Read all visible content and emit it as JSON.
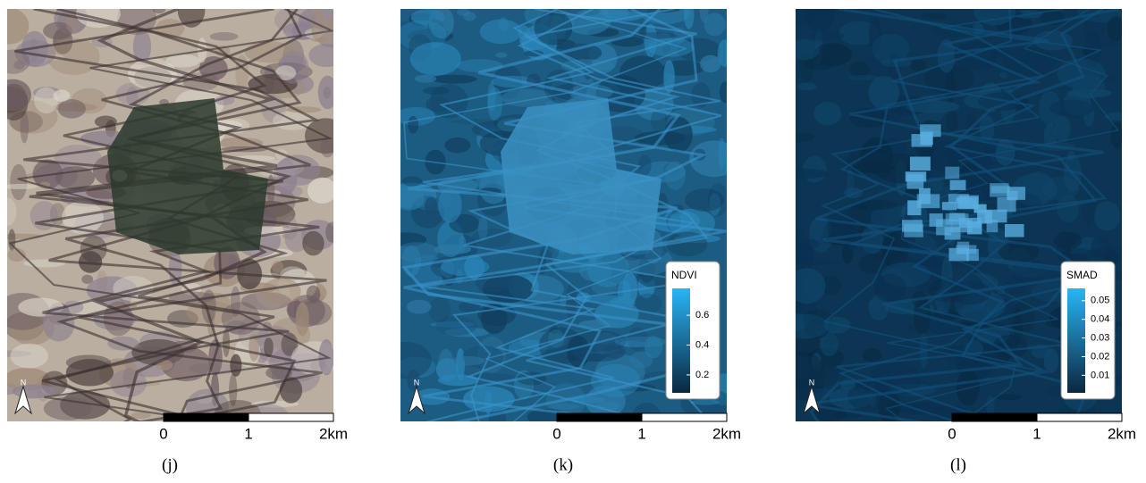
{
  "panels": [
    {
      "label": "(j)"
    },
    {
      "label": "(k)",
      "legend": {
        "title": "NDVI",
        "lim": [
          0.08,
          0.78
        ],
        "ticks": [
          0.2,
          0.4,
          0.6
        ],
        "colors": [
          "#0b2740",
          "#29b5f5"
        ]
      }
    },
    {
      "label": "(l)",
      "legend": {
        "title": "SMAD",
        "lim": [
          0.0006,
          0.0566
        ],
        "ticks": [
          0.01,
          0.02,
          0.03,
          0.04,
          0.05
        ],
        "colors": [
          "#0b2740",
          "#29b5f5"
        ]
      }
    }
  ],
  "north_label": "N",
  "scale_bar": {
    "lim": [
      0,
      2
    ],
    "ticks": [
      0,
      1,
      {
        "value": 2,
        "label": "2km"
      }
    ]
  }
}
